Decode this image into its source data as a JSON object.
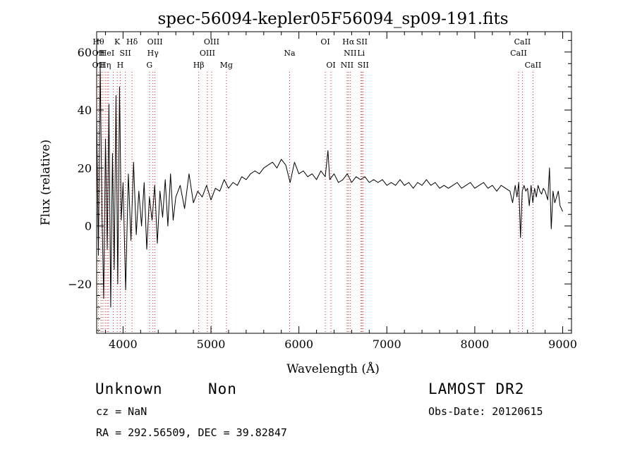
{
  "chart_data": {
    "type": "line",
    "title": "spec-56094-kepler05F56094_sp09-191.fits",
    "xlabel": "Wavelength (Å)",
    "ylabel": "Flux (relative)",
    "xlim": [
      3700,
      9100
    ],
    "ylim": [
      -37,
      67
    ],
    "xticks": [
      4000,
      5000,
      6000,
      7000,
      8000,
      9000
    ],
    "yticks": [
      -20,
      0,
      20,
      40,
      60
    ],
    "grid": false,
    "line_color": "#000000",
    "marker_color": "#d22020",
    "series": [
      {
        "x": [
          3700,
          3720,
          3740,
          3760,
          3780,
          3800,
          3820,
          3840,
          3860,
          3880,
          3900,
          3920,
          3940,
          3960,
          3980,
          4000,
          4030,
          4060,
          4090,
          4120,
          4150,
          4180,
          4210,
          4240,
          4270,
          4300,
          4330,
          4360,
          4390,
          4420,
          4450,
          4480,
          4510,
          4540,
          4570,
          4600,
          4650,
          4700,
          4750,
          4800,
          4850,
          4900,
          4950,
          5000,
          5050,
          5100,
          5150,
          5200,
          5250,
          5300,
          5350,
          5400,
          5450,
          5500,
          5550,
          5600,
          5650,
          5700,
          5750,
          5800,
          5850,
          5900,
          5950,
          6000,
          6050,
          6100,
          6150,
          6200,
          6250,
          6300,
          6330,
          6350,
          6400,
          6450,
          6500,
          6550,
          6600,
          6650,
          6700,
          6750,
          6800,
          6850,
          6900,
          6950,
          7000,
          7050,
          7100,
          7150,
          7200,
          7250,
          7300,
          7350,
          7400,
          7450,
          7500,
          7550,
          7600,
          7650,
          7700,
          7750,
          7800,
          7850,
          7900,
          7950,
          8000,
          8050,
          8100,
          8150,
          8200,
          8250,
          8300,
          8350,
          8400,
          8430,
          8460,
          8480,
          8500,
          8520,
          8540,
          8560,
          8580,
          8600,
          8620,
          8640,
          8660,
          8680,
          8700,
          8720,
          8740,
          8760,
          8780,
          8800,
          8830,
          8850,
          8870,
          8890,
          8910,
          8930,
          8950,
          8970,
          9000
        ],
        "y": [
          38,
          -10,
          55,
          5,
          -25,
          30,
          -8,
          42,
          -28,
          25,
          -15,
          45,
          -20,
          48,
          2,
          15,
          -22,
          18,
          -5,
          22,
          -3,
          12,
          0,
          15,
          -8,
          10,
          2,
          14,
          -6,
          12,
          3,
          16,
          0,
          18,
          2,
          10,
          14,
          6,
          18,
          8,
          12,
          10,
          14,
          9,
          13,
          12,
          16,
          13,
          15,
          14,
          17,
          16,
          18,
          19,
          18,
          20,
          21,
          22,
          20,
          23,
          21,
          15,
          22,
          18,
          19,
          17,
          18,
          16,
          19,
          17,
          26,
          16,
          18,
          15,
          16,
          18,
          15,
          17,
          16,
          17,
          15,
          16,
          15,
          16,
          14,
          15,
          14,
          16,
          14,
          15,
          13,
          15,
          14,
          16,
          14,
          15,
          13,
          14,
          13,
          14,
          15,
          13,
          14,
          15,
          13,
          14,
          15,
          13,
          14,
          12,
          14,
          13,
          12,
          8,
          14,
          10,
          15,
          -4,
          12,
          14,
          12,
          13,
          7,
          14,
          8,
          13,
          10,
          14,
          12,
          11,
          13,
          12,
          9,
          20,
          -1,
          12,
          8,
          10,
          12,
          7,
          5
        ]
      }
    ],
    "lines": [
      {
        "x": 3720,
        "labels": [
          "Hθ",
          "OII",
          "OII"
        ]
      },
      {
        "x": 3750,
        "labels": []
      },
      {
        "x": 3771,
        "labels": []
      },
      {
        "x": 3798,
        "labels": [
          "",
          "",
          "Hη"
        ]
      },
      {
        "x": 3820,
        "labels": [
          "",
          "HeI",
          ""
        ]
      },
      {
        "x": 3835,
        "labels": []
      },
      {
        "x": 3889,
        "labels": []
      },
      {
        "x": 3934,
        "labels": [
          "K",
          "",
          ""
        ]
      },
      {
        "x": 3968,
        "labels": [
          "",
          "",
          "H"
        ]
      },
      {
        "x": 4026,
        "labels": [
          "",
          "SII",
          ""
        ]
      },
      {
        "x": 4102,
        "labels": [
          "Hδ",
          "",
          ""
        ]
      },
      {
        "x": 4300,
        "labels": [
          "",
          "",
          "G"
        ]
      },
      {
        "x": 4340,
        "labels": [
          "",
          "Hγ",
          ""
        ]
      },
      {
        "x": 4363,
        "labels": [
          "OIII",
          "",
          ""
        ]
      },
      {
        "x": 4861,
        "labels": [
          "",
          "",
          "Hβ"
        ]
      },
      {
        "x": 4959,
        "labels": [
          "",
          "OIII",
          ""
        ]
      },
      {
        "x": 5007,
        "labels": [
          "OIII",
          "",
          ""
        ]
      },
      {
        "x": 5175,
        "labels": [
          "",
          "",
          "Mg"
        ]
      },
      {
        "x": 5894,
        "labels": [
          "",
          "Na",
          ""
        ]
      },
      {
        "x": 6300,
        "labels": [
          "OI",
          "",
          ""
        ]
      },
      {
        "x": 6364,
        "labels": [
          "",
          "",
          "OI"
        ]
      },
      {
        "x": 6548,
        "labels": [
          "",
          "",
          "NII"
        ]
      },
      {
        "x": 6563,
        "labels": [
          "Hα",
          "",
          ""
        ]
      },
      {
        "x": 6583,
        "labels": [
          "",
          "NII",
          ""
        ]
      },
      {
        "x": 6707,
        "labels": [
          "",
          "Li",
          ""
        ]
      },
      {
        "x": 6716,
        "labels": [
          "SII",
          "",
          ""
        ]
      },
      {
        "x": 6731,
        "labels": [
          "",
          "",
          "SII"
        ]
      },
      {
        "x": 8498,
        "labels": [
          "",
          "CaII",
          ""
        ]
      },
      {
        "x": 8542,
        "labels": [
          "CaII",
          "",
          ""
        ]
      },
      {
        "x": 8662,
        "labels": [
          "",
          "",
          "CaII"
        ]
      }
    ]
  },
  "info": {
    "class_label": "Unknown",
    "subclass_label": "Non",
    "survey": "LAMOST DR2",
    "cz": "cz = NaN",
    "obs_date": "Obs-Date: 20120615",
    "coords": "RA = 292.56509, DEC =  39.82847"
  }
}
